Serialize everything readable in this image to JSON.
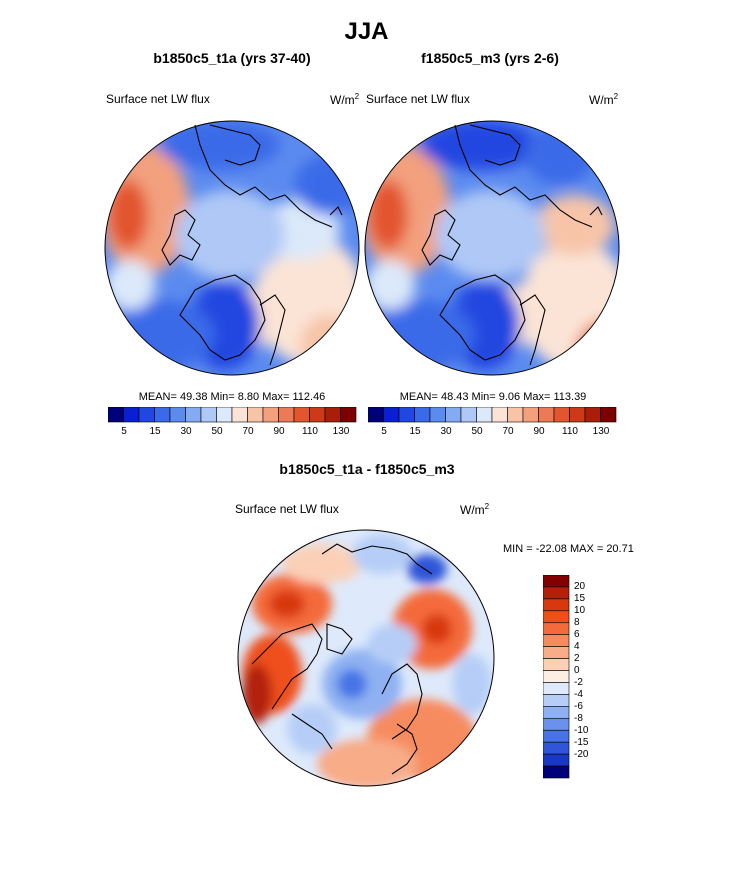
{
  "title": "JJA",
  "panels": [
    {
      "title": "b1850c5_t1a (yrs 37-40)",
      "variable": "Surface net LW flux",
      "units": "W/m",
      "units_sup": "2",
      "stats_text": "MEAN=  49.38  Min=   8.80  Max= 112.46"
    },
    {
      "title": "f1850c5_m3 (yrs 2-6)",
      "variable": "Surface net LW flux",
      "units": "W/m",
      "units_sup": "2",
      "stats_text": "MEAN=  48.43  Min=   9.06  Max= 113.39"
    }
  ],
  "abs_colorbar": {
    "colors": [
      "#00007a",
      "#0a1fd1",
      "#2047e0",
      "#3b6ae8",
      "#5b8bef",
      "#84aaf2",
      "#afc8f6",
      "#dce9fa",
      "#fbe4d6",
      "#f7c4a8",
      "#f3a07e",
      "#ec7a57",
      "#e2552f",
      "#cc3a17",
      "#a91e08",
      "#7c0000"
    ],
    "tick_labels": [
      "5",
      "15",
      "30",
      "50",
      "70",
      "90",
      "110",
      "130"
    ]
  },
  "diff_panel": {
    "title": "b1850c5_t1a - f1850c5_m3",
    "variable": "Surface net LW flux",
    "units": "W/m",
    "units_sup": "2",
    "stats_text": "MIN = -22.08 MAX =  20.71"
  },
  "diff_colorbar": {
    "colors": [
      "#820000",
      "#b3200a",
      "#d8380d",
      "#ef4f1c",
      "#f46a3a",
      "#f68b5e",
      "#f8ac88",
      "#fbd0b7",
      "#fdeee4",
      "#deeafb",
      "#b6cef7",
      "#8fb1f2",
      "#6a92ec",
      "#4773e6",
      "#2f55d8",
      "#1737c4",
      "#00007a"
    ],
    "tick_labels": [
      "20",
      "15",
      "10",
      "8",
      "6",
      "4",
      "2",
      "0",
      "-2",
      "-4",
      "-6",
      "-8",
      "-10",
      "-15",
      "-20"
    ]
  },
  "colors": {
    "land_outline": "#000000",
    "background": "#ffffff"
  }
}
